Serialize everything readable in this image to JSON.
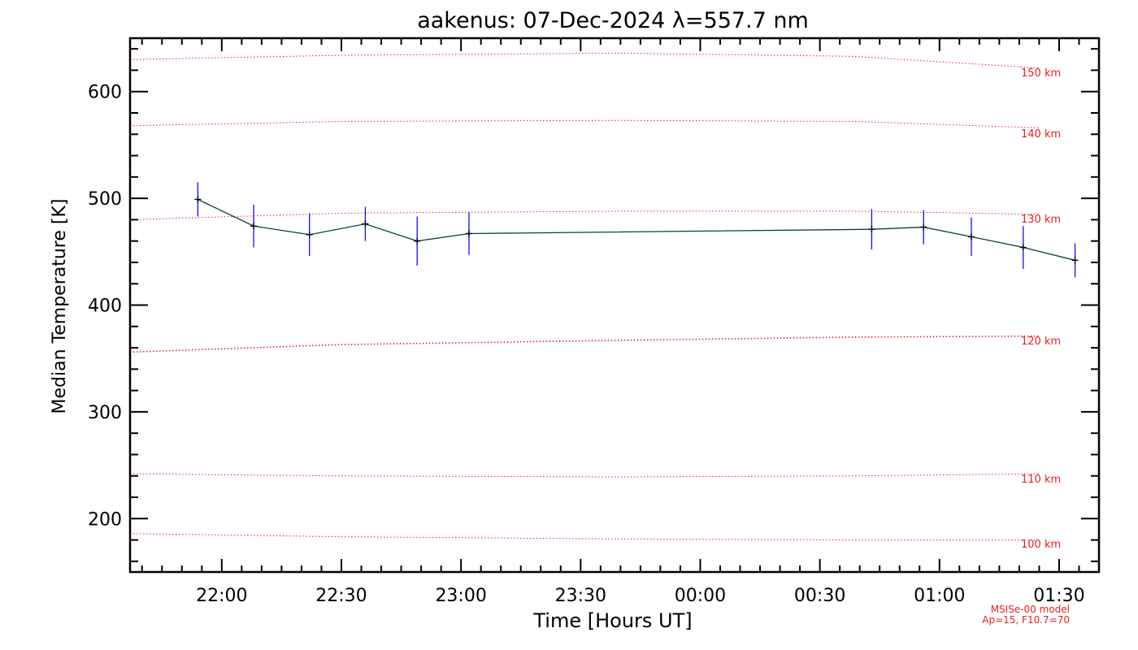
{
  "chart_data": {
    "type": "line",
    "title": "aakenus: 07-Dec-2024 λ=557.7 nm",
    "xlabel": "Time [Hours UT]",
    "ylabel": "Median Temperature [K]",
    "x_unit": "hours UT (continuing past midnight)",
    "xlim": [
      "21:37",
      "01:40"
    ],
    "ylim": [
      150,
      650
    ],
    "x_ticks": [
      "22:00",
      "22:30",
      "23:00",
      "23:30",
      "00:00",
      "00:30",
      "01:00",
      "01:30"
    ],
    "y_ticks": [
      "200",
      "300",
      "400",
      "500",
      "600"
    ],
    "grid": false,
    "series": [
      {
        "x": [
          "21:54",
          "22:08",
          "22:22",
          "22:36",
          "22:49",
          "23:02",
          "00:43",
          "00:56",
          "01:08",
          "01:21",
          "01:34"
        ],
        "values": [
          499,
          474,
          466,
          476,
          460,
          467,
          471,
          473,
          464,
          454,
          442
        ],
        "error": [
          16,
          20,
          20,
          16,
          23,
          20,
          19,
          16,
          18,
          20,
          16
        ],
        "color": "#0a3d4a",
        "error_color": "#1010dd"
      }
    ],
    "model_lines": {
      "color": "#e82020",
      "lines": [
        {
          "label": "150 km",
          "values": [
            630,
            634,
            636,
            633,
            622
          ]
        },
        {
          "label": "140 km",
          "values": [
            568,
            572,
            573,
            572,
            566
          ]
        },
        {
          "label": "130 km",
          "values": [
            480,
            486,
            488,
            488,
            485
          ]
        },
        {
          "label": "120 km",
          "values": [
            356,
            363,
            367,
            370,
            371
          ]
        },
        {
          "label": "110 km",
          "values": [
            242,
            240,
            239,
            240,
            242
          ]
        },
        {
          "label": "100 km",
          "values": [
            186,
            183,
            181,
            180,
            180
          ]
        }
      ]
    },
    "annotations": [
      "MSISe-00 model",
      "Ap=15, F10.7=70"
    ]
  }
}
